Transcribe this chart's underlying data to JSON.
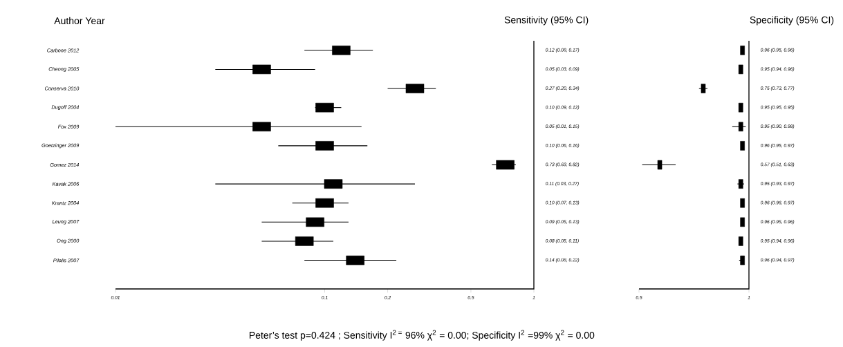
{
  "chart_data": [
    {
      "type": "scatter",
      "orientation": "horizontal",
      "title": "Sensitivity (95% CI)",
      "ylabel": "Author Year",
      "categories": [
        "Carbone 2012",
        "Cheong 2005",
        "Conserva 2010",
        "Dugoff 2004",
        "Fox 2009",
        "Goetzinger 2009",
        "Gomez 2014",
        "Kavak 2006",
        "Krantz 2004",
        "Leung 2007",
        "Ong 2000",
        "Pilalis 2007"
      ],
      "values": [
        0.12,
        0.05,
        0.27,
        0.1,
        0.05,
        0.1,
        0.73,
        0.11,
        0.1,
        0.09,
        0.08,
        0.14
      ],
      "errors": [
        [
          0.08,
          0.17
        ],
        [
          0.03,
          0.09
        ],
        [
          0.2,
          0.34
        ],
        [
          0.09,
          0.12
        ],
        [
          0.01,
          0.15
        ],
        [
          0.06,
          0.16
        ],
        [
          0.63,
          0.82
        ],
        [
          0.03,
          0.27
        ],
        [
          0.07,
          0.13
        ],
        [
          0.05,
          0.13
        ],
        [
          0.05,
          0.11
        ],
        [
          0.08,
          0.22
        ]
      ],
      "value_labels": [
        "0.12 (0.08, 0.17)",
        "0.05 (0.03, 0.09)",
        "0.27 (0.20, 0.34)",
        "0.10 (0.09, 0.12)",
        "0.05 (0.01, 0.15)",
        "0.10 (0.06, 0.16)",
        "0.73 (0.63, 0.82)",
        "0.11 (0.03, 0.27)",
        "0.10 (0.07, 0.13)",
        "0.09 (0.05, 0.13)",
        "0.08 (0.05, 0.11)",
        "0.14 (0.08, 0.22)"
      ],
      "color": "#000000",
      "marker": "square",
      "log": "x",
      "xlim": [
        0.01,
        1
      ],
      "xticks": [
        0.01,
        0.1,
        0.2,
        0.5,
        1
      ],
      "annotations": [
        "Peter’s test p=0.424 ; Sensitivity I$^{2 =}$ 96% χ$^{2}$ = 0.00; Specificity I$^{2}$ =99% χ$^{2}$ = 0.00"
      ]
    },
    {
      "type": "scatter",
      "orientation": "horizontal",
      "title": "Specificity (95% CI)",
      "categories": [
        null,
        null,
        null,
        null,
        null,
        null,
        null,
        null,
        null,
        null,
        null,
        null
      ],
      "values": [
        0.96,
        0.95,
        0.75,
        0.95,
        0.95,
        0.96,
        0.57,
        0.95,
        0.96,
        0.96,
        0.95,
        0.96
      ],
      "errors": [
        [
          0.95,
          0.96
        ],
        [
          0.94,
          0.96
        ],
        [
          0.73,
          0.77
        ],
        [
          0.95,
          0.95
        ],
        [
          0.9,
          0.98
        ],
        [
          0.95,
          0.97
        ],
        [
          0.51,
          0.63
        ],
        [
          0.93,
          0.97
        ],
        [
          0.96,
          0.97
        ],
        [
          0.95,
          0.96
        ],
        [
          0.94,
          0.96
        ],
        [
          0.94,
          0.97
        ]
      ],
      "value_labels": [
        "0.96 (0.95, 0.96)",
        "0.95 (0.94, 0.96)",
        "0.75 (0.73, 0.77)",
        "0.95 (0.95, 0.95)",
        "0.95 (0.90, 0.98)",
        "0.96 (0.95, 0.97)",
        "0.57 (0.51, 0.63)",
        "0.95 (0.93, 0.97)",
        "0.96 (0.96, 0.97)",
        "0.96 (0.95, 0.96)",
        "0.95 (0.94, 0.96)",
        "0.96 (0.94, 0.97)"
      ],
      "color": "#000000",
      "marker": "square",
      "log": "x",
      "xlim": [
        0.5,
        1
      ],
      "xticks": [
        0.5,
        1
      ],
      "tick_labels": "x"
    }
  ]
}
